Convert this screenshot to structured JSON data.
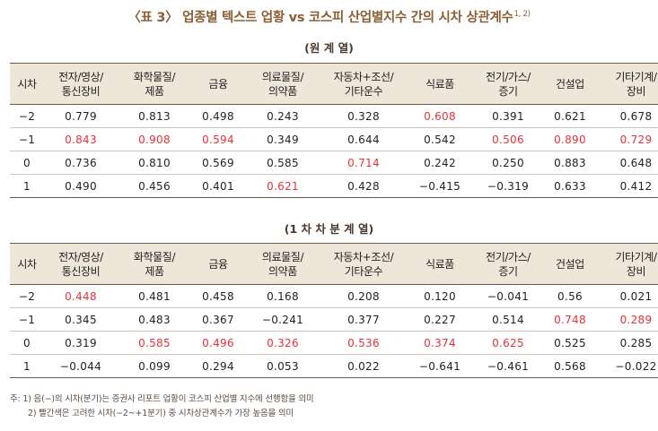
{
  "title": "〈표 3〉 업종별 텍스트 업황 vs 코스피 산업별지수 간의 시차 상관계수",
  "title_sup": "1, 2)",
  "columns": [
    "시차",
    "전자/영상/\n통신장비",
    "화학물질/\n제품",
    "금융",
    "의료물질/\n의약품",
    "자동차+조선/\n기타운수",
    "식료품",
    "전기/가스/\n증기",
    "건설업",
    "기타기계/\n장비"
  ],
  "tables": [
    {
      "caption": "(원 계 열)",
      "rows": [
        {
          "lag": "−2",
          "cells": [
            {
              "v": "0.779"
            },
            {
              "v": "0.813"
            },
            {
              "v": "0.498"
            },
            {
              "v": "0.243"
            },
            {
              "v": "0.328"
            },
            {
              "v": "0.608",
              "hl": true
            },
            {
              "v": "0.391"
            },
            {
              "v": "0.621"
            },
            {
              "v": "0.678"
            }
          ]
        },
        {
          "lag": "−1",
          "cells": [
            {
              "v": "0.843",
              "hl": true
            },
            {
              "v": "0.908",
              "hl": true
            },
            {
              "v": "0.594",
              "hl": true
            },
            {
              "v": "0.349"
            },
            {
              "v": "0.644"
            },
            {
              "v": "0.542"
            },
            {
              "v": "0.506",
              "hl": true
            },
            {
              "v": "0.890",
              "hl": true
            },
            {
              "v": "0.729",
              "hl": true
            }
          ]
        },
        {
          "lag": "0",
          "cells": [
            {
              "v": "0.736"
            },
            {
              "v": "0.810"
            },
            {
              "v": "0.569"
            },
            {
              "v": "0.585"
            },
            {
              "v": "0.714",
              "hl": true
            },
            {
              "v": "0.242"
            },
            {
              "v": "0.250"
            },
            {
              "v": "0.883"
            },
            {
              "v": "0.648"
            }
          ]
        },
        {
          "lag": "1",
          "cells": [
            {
              "v": "0.490"
            },
            {
              "v": "0.456"
            },
            {
              "v": "0.401"
            },
            {
              "v": "0.621",
              "hl": true
            },
            {
              "v": "0.428"
            },
            {
              "v": "−0.415"
            },
            {
              "v": "−0.319"
            },
            {
              "v": "0.633"
            },
            {
              "v": "0.412"
            }
          ]
        }
      ]
    },
    {
      "caption": "(1 차 차 분 계 열)",
      "rows": [
        {
          "lag": "−2",
          "cells": [
            {
              "v": "0.448",
              "hl": true
            },
            {
              "v": "0.481"
            },
            {
              "v": "0.458"
            },
            {
              "v": "0.168"
            },
            {
              "v": "0.208"
            },
            {
              "v": "0.120"
            },
            {
              "v": "−0.041"
            },
            {
              "v": "0.56"
            },
            {
              "v": "0.021"
            }
          ]
        },
        {
          "lag": "−1",
          "cells": [
            {
              "v": "0.345"
            },
            {
              "v": "0.483"
            },
            {
              "v": "0.367"
            },
            {
              "v": "−0.241"
            },
            {
              "v": "0.377"
            },
            {
              "v": "0.227"
            },
            {
              "v": "0.514"
            },
            {
              "v": "0.748",
              "hl": true
            },
            {
              "v": "0.289",
              "hl": true
            }
          ]
        },
        {
          "lag": "0",
          "cells": [
            {
              "v": "0.319"
            },
            {
              "v": "0.585",
              "hl": true
            },
            {
              "v": "0.496",
              "hl": true
            },
            {
              "v": "0.326",
              "hl": true
            },
            {
              "v": "0.536",
              "hl": true
            },
            {
              "v": "0.374",
              "hl": true
            },
            {
              "v": "0.625",
              "hl": true
            },
            {
              "v": "0.525"
            },
            {
              "v": "0.285"
            }
          ]
        },
        {
          "lag": "1",
          "cells": [
            {
              "v": "−0.044"
            },
            {
              "v": "0.099"
            },
            {
              "v": "0.294"
            },
            {
              "v": "0.053"
            },
            {
              "v": "0.022"
            },
            {
              "v": "−0.641"
            },
            {
              "v": "−0.461"
            },
            {
              "v": "0.568"
            },
            {
              "v": "−0.022"
            }
          ]
        }
      ]
    }
  ],
  "notes": [
    "주: 1) 음(−)의 시차(분기)는 증권사 리포트 업황이 코스피 산업별 지수에 선행함을 의미",
    "2) 빨간색은 고려한 시차(−2~+1분기) 중 시차상관계수가 가장 높음을 의미"
  ],
  "colors": {
    "title": "#8b5e34",
    "header_bg": "#efe6d9",
    "highlight": "#e8323a",
    "rule": "#6b5a4c"
  }
}
